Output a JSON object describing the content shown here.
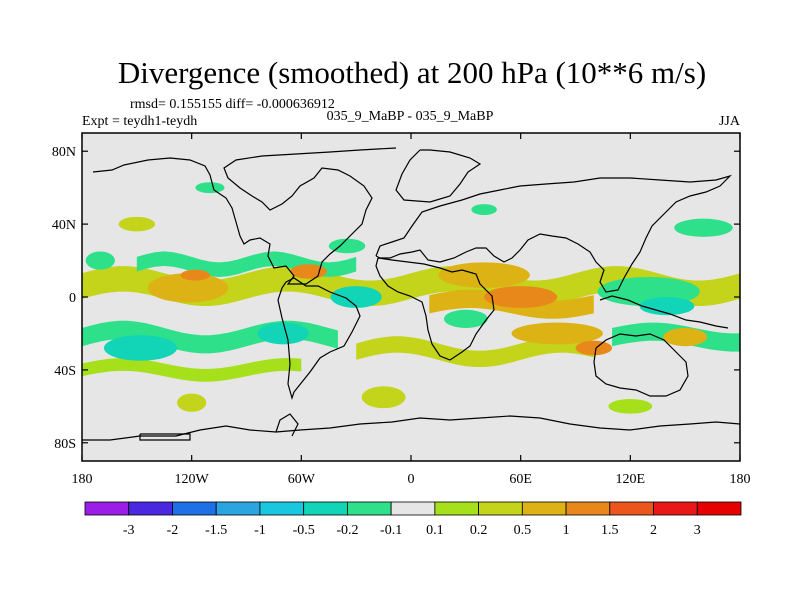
{
  "chart_data": {
    "type": "heatmap",
    "title": "Divergence (smoothed) at 200 hPa (10**6 m/s)",
    "stats_label": "rmsd= 0.155155 diff= -0.000636912",
    "expt_label": "Expt = teydh1-teydh",
    "case_label": "035_9_MaBP - 035_9_MaBP",
    "season_label": "JJA",
    "x_ticks": [
      {
        "lon": -180,
        "label": "180"
      },
      {
        "lon": -120,
        "label": "120W"
      },
      {
        "lon": -60,
        "label": "60W"
      },
      {
        "lon": 0,
        "label": "0"
      },
      {
        "lon": 60,
        "label": "60E"
      },
      {
        "lon": 120,
        "label": "120E"
      },
      {
        "lon": 180,
        "label": "180"
      }
    ],
    "y_ticks": [
      {
        "lat": 80,
        "label": "80N"
      },
      {
        "lat": 40,
        "label": "40N"
      },
      {
        "lat": 0,
        "label": "0"
      },
      {
        "lat": -40,
        "label": "40S"
      },
      {
        "lat": -80,
        "label": "80S"
      }
    ],
    "xlim": [
      -180,
      180
    ],
    "ylim": [
      -90,
      90
    ],
    "colorbar": {
      "labels": [
        "-3",
        "-2",
        "-1.5",
        "-1",
        "-0.5",
        "-0.2",
        "-0.1",
        "0.1",
        "0.2",
        "0.5",
        "1",
        "1.5",
        "2",
        "3"
      ],
      "colors": [
        "#9a1ee6",
        "#4a28e0",
        "#1f6fe6",
        "#2aa5e0",
        "#19c7de",
        "#11d5b6",
        "#2ee08a",
        "#e6e6e6",
        "#a6e01a",
        "#c4d41a",
        "#dcb214",
        "#e8881a",
        "#ec561c",
        "#e81818",
        "#e60000"
      ]
    },
    "regions": [
      {
        "shape": "band",
        "lat": 6,
        "lon_start": -180,
        "lon_end": 180,
        "width": 14,
        "amp": 4,
        "freq": 2,
        "value": 0.2
      },
      {
        "shape": "band",
        "lat": -4,
        "lon_start": 10,
        "lon_end": 100,
        "width": 10,
        "amp": 3,
        "freq": 2,
        "value": 0.5
      },
      {
        "shape": "band",
        "lat": 18,
        "lon_start": -150,
        "lon_end": -30,
        "width": 8,
        "amp": 3,
        "freq": 3,
        "value": -0.2
      },
      {
        "shape": "band",
        "lat": -22,
        "lon_start": -180,
        "lon_end": -40,
        "width": 10,
        "amp": 4,
        "freq": 2,
        "value": -0.2
      },
      {
        "shape": "band",
        "lat": -22,
        "lon_start": 110,
        "lon_end": 180,
        "width": 10,
        "amp": 3,
        "freq": 2,
        "value": -0.2
      },
      {
        "shape": "band",
        "lat": -30,
        "lon_start": -30,
        "lon_end": 100,
        "width": 9,
        "amp": 4,
        "freq": 2,
        "value": 0.2
      },
      {
        "shape": "band",
        "lat": -40,
        "lon_start": -180,
        "lon_end": -60,
        "width": 7,
        "amp": 3,
        "freq": 2,
        "value": 0.1
      },
      {
        "shape": "ellipse",
        "lon": -122,
        "lat": 5,
        "rx": 22,
        "ry": 8,
        "value": 0.5
      },
      {
        "shape": "ellipse",
        "lon": -118,
        "lat": 12,
        "rx": 8,
        "ry": 3,
        "value": 1
      },
      {
        "shape": "ellipse",
        "lon": -56,
        "lat": 14,
        "rx": 10,
        "ry": 4,
        "value": 1
      },
      {
        "shape": "ellipse",
        "lon": -30,
        "lat": 0,
        "rx": 14,
        "ry": 6,
        "value": -0.5
      },
      {
        "shape": "ellipse",
        "lon": -70,
        "lat": -20,
        "rx": 14,
        "ry": 6,
        "value": -0.5
      },
      {
        "shape": "ellipse",
        "lon": -148,
        "lat": -28,
        "rx": 20,
        "ry": 7,
        "value": -0.5
      },
      {
        "shape": "ellipse",
        "lon": 40,
        "lat": 12,
        "rx": 25,
        "ry": 7,
        "value": 0.5
      },
      {
        "shape": "ellipse",
        "lon": 60,
        "lat": 0,
        "rx": 20,
        "ry": 6,
        "value": 1
      },
      {
        "shape": "ellipse",
        "lon": 30,
        "lat": -12,
        "rx": 12,
        "ry": 5,
        "value": -0.2
      },
      {
        "shape": "ellipse",
        "lon": 80,
        "lat": -20,
        "rx": 25,
        "ry": 6,
        "value": 0.5
      },
      {
        "shape": "ellipse",
        "lon": 100,
        "lat": -28,
        "rx": 10,
        "ry": 4,
        "value": 1
      },
      {
        "shape": "ellipse",
        "lon": 130,
        "lat": 3,
        "rx": 28,
        "ry": 8,
        "value": -0.2
      },
      {
        "shape": "ellipse",
        "lon": 140,
        "lat": -5,
        "rx": 15,
        "ry": 5,
        "value": -0.5
      },
      {
        "shape": "ellipse",
        "lon": 150,
        "lat": -22,
        "rx": 12,
        "ry": 5,
        "value": 0.5
      },
      {
        "shape": "ellipse",
        "lon": 160,
        "lat": 38,
        "rx": 16,
        "ry": 5,
        "value": -0.2
      },
      {
        "shape": "ellipse",
        "lon": -150,
        "lat": 40,
        "rx": 10,
        "ry": 4,
        "value": 0.2
      },
      {
        "shape": "ellipse",
        "lon": -35,
        "lat": 28,
        "rx": 10,
        "ry": 4,
        "value": -0.2
      },
      {
        "shape": "ellipse",
        "lon": -110,
        "lat": 60,
        "rx": 8,
        "ry": 3,
        "value": -0.2
      },
      {
        "shape": "ellipse",
        "lon": 40,
        "lat": 48,
        "rx": 7,
        "ry": 3,
        "value": -0.2
      },
      {
        "shape": "ellipse",
        "lon": -15,
        "lat": -55,
        "rx": 12,
        "ry": 6,
        "value": 0.2
      },
      {
        "shape": "ellipse",
        "lon": -120,
        "lat": -58,
        "rx": 8,
        "ry": 5,
        "value": 0.2
      },
      {
        "shape": "ellipse",
        "lon": 120,
        "lat": -60,
        "rx": 12,
        "ry": 4,
        "value": 0.1
      },
      {
        "shape": "ellipse",
        "lon": -170,
        "lat": 20,
        "rx": 8,
        "ry": 5,
        "value": -0.2
      }
    ]
  }
}
